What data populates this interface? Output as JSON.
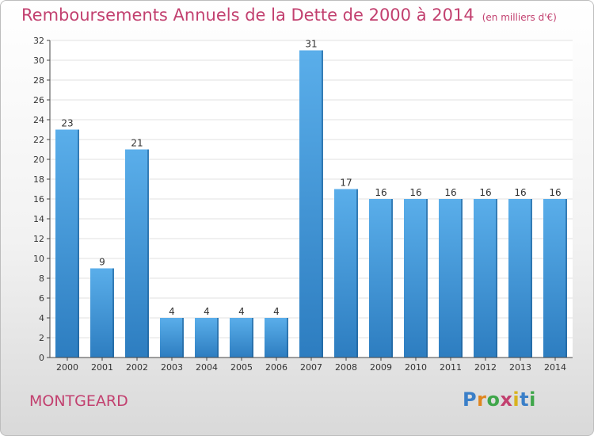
{
  "header": {
    "title": "Remboursements Annuels de la Dette de 2000 à 2014",
    "unit": "(en milliers d'€)"
  },
  "footer": {
    "commune": "MONTGEARD",
    "logo_letters": [
      "P",
      "r",
      "o",
      "x",
      "i",
      "t",
      "i"
    ]
  },
  "colors": {
    "bar_top": "#5aaeea",
    "bar_bottom": "#2d7dc0",
    "bar_side": "#1e5f96",
    "accent": "#c2406f",
    "grid": "#e2e2e2",
    "axis": "#444444"
  },
  "chart_data": {
    "type": "bar",
    "title": "Remboursements Annuels de la Dette de 2000 à 2014",
    "subtitle": "(en milliers d'€)",
    "xlabel": "",
    "ylabel": "",
    "categories": [
      "2000",
      "2001",
      "2002",
      "2003",
      "2004",
      "2005",
      "2006",
      "2007",
      "2008",
      "2009",
      "2010",
      "2011",
      "2012",
      "2013",
      "2014"
    ],
    "values": [
      23,
      9,
      21,
      4,
      4,
      4,
      4,
      31,
      17,
      16,
      16,
      16,
      16,
      16,
      16
    ],
    "ylim": [
      0,
      32
    ],
    "yticks": [
      0,
      2,
      4,
      6,
      8,
      10,
      12,
      14,
      16,
      18,
      20,
      22,
      24,
      26,
      28,
      30,
      32
    ],
    "grid": true,
    "legend": "none",
    "data_labels": true
  }
}
